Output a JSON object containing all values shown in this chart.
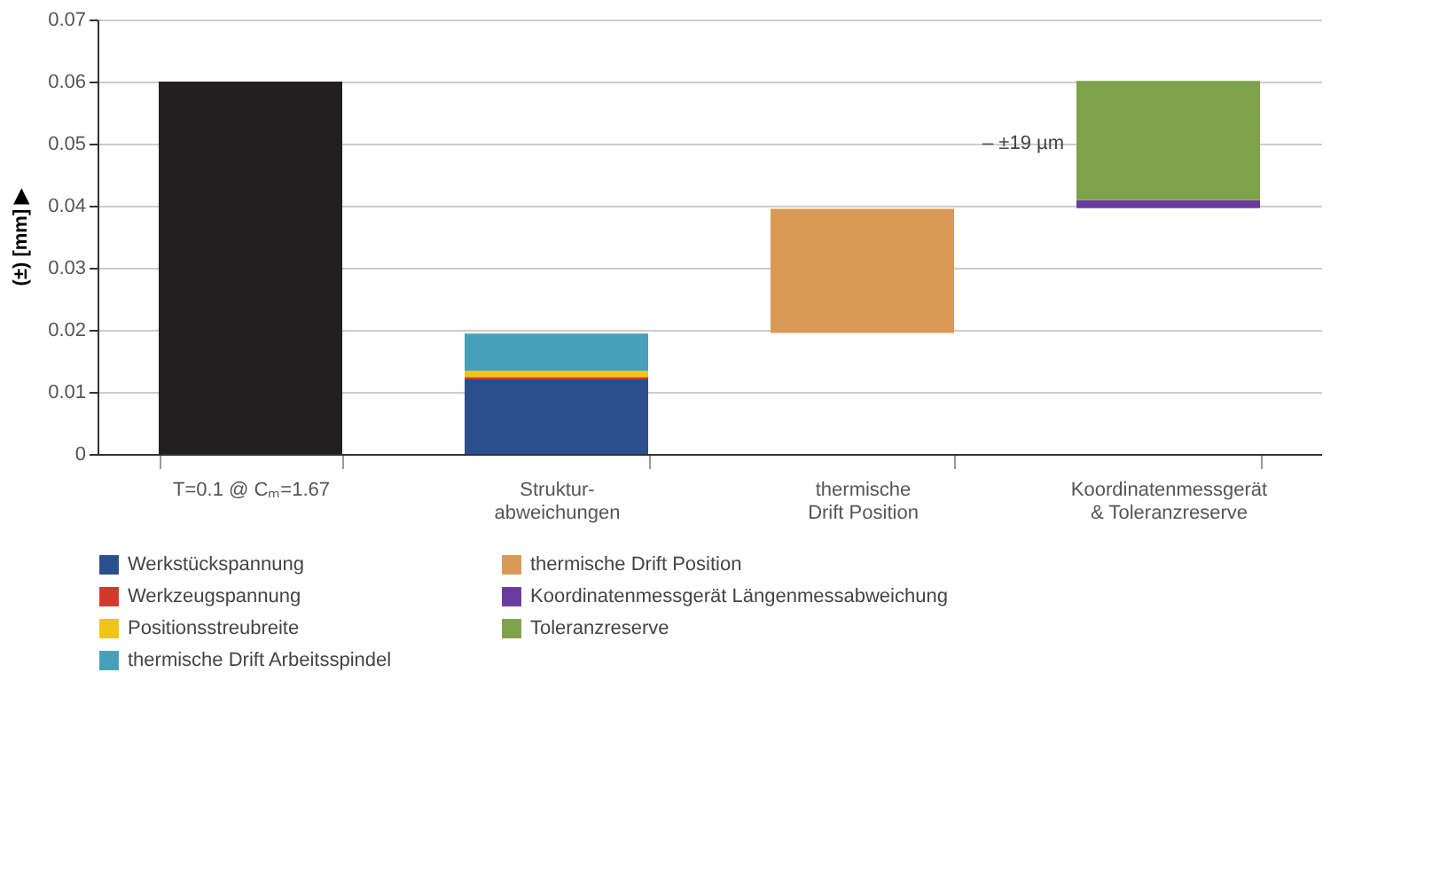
{
  "chart_data": {
    "type": "bar",
    "ylabel": "(±) [mm] ▶",
    "categories": [
      "T=0.1 @ Cₘ=1.67",
      "Struktur-\nabweichungen",
      "thermische\nDrift Position",
      "Koordinatenmessgerät\n& Toleranzreserve"
    ],
    "series": [
      {
        "color": "#231f20",
        "values": [
          0.06,
          null,
          null,
          null
        ],
        "base": [
          0,
          null,
          null,
          null
        ]
      },
      {
        "name": "Werkstückspannung",
        "color": "#2b4f8c",
        "values": [
          null,
          0.012,
          null,
          null
        ],
        "base": [
          null,
          0,
          null,
          null
        ]
      },
      {
        "name": "Werkzeugspannung",
        "color": "#d0392b",
        "values": [
          null,
          0.0004,
          null,
          null
        ],
        "base": [
          null,
          0.012,
          null,
          null
        ]
      },
      {
        "name": "Positionsstreubreite",
        "color": "#f0c419",
        "values": [
          null,
          0.001,
          null,
          null
        ],
        "base": [
          null,
          0.0124,
          null,
          null
        ]
      },
      {
        "name": "thermische Drift Arbeitsspindel",
        "color": "#46a0b8",
        "values": [
          null,
          0.006,
          null,
          null
        ],
        "base": [
          null,
          0.0134,
          null,
          null
        ]
      },
      {
        "name": "thermische Drift Position",
        "color": "#d99a55",
        "values": [
          null,
          null,
          0.02,
          null
        ],
        "base": [
          null,
          null,
          0.0195,
          null
        ]
      },
      {
        "name": "Koordinatenmessgerät Längenmessabweichung",
        "color": "#6a3a9e",
        "values": [
          null,
          null,
          null,
          0.0013
        ],
        "base": [
          null,
          null,
          null,
          0.0396
        ]
      },
      {
        "name": "Toleranzreserve",
        "color": "#7ea24a",
        "values": [
          null,
          null,
          null,
          0.0192
        ],
        "base": [
          null,
          null,
          null,
          0.0409
        ]
      }
    ],
    "ylim": [
      0,
      0.07
    ],
    "yticks": [
      0,
      0.01,
      0.02,
      0.03,
      0.04,
      0.05,
      0.06,
      0.07
    ],
    "annotations": [
      "– ±19 µm"
    ],
    "grid": "y",
    "legend": "bottom"
  }
}
